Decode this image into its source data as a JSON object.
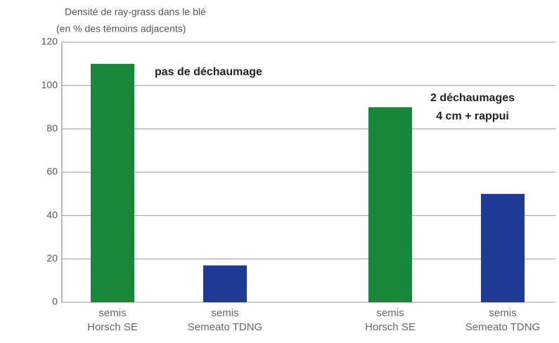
{
  "chart_data": {
    "type": "bar",
    "title": "Densité de ray-grass dans le blé",
    "subtitle": "(en % des témoins adjacents)",
    "categories": [
      "semis\nHorsch SE",
      "semis\nSemeato TDNG",
      "semis\nHorsch SE",
      "semis\nSemeato TDNG"
    ],
    "values": [
      110,
      17,
      90,
      50
    ],
    "colors": [
      "#17883a",
      "#1e3a94",
      "#17883a",
      "#1e3a94"
    ],
    "annotations": [
      "pas de déchaumage",
      "2 déchaumages",
      "4 cm + rappui"
    ],
    "ylim": [
      0,
      120
    ],
    "yticks": [
      0,
      20,
      40,
      60,
      80,
      100,
      120
    ],
    "grid": true
  }
}
